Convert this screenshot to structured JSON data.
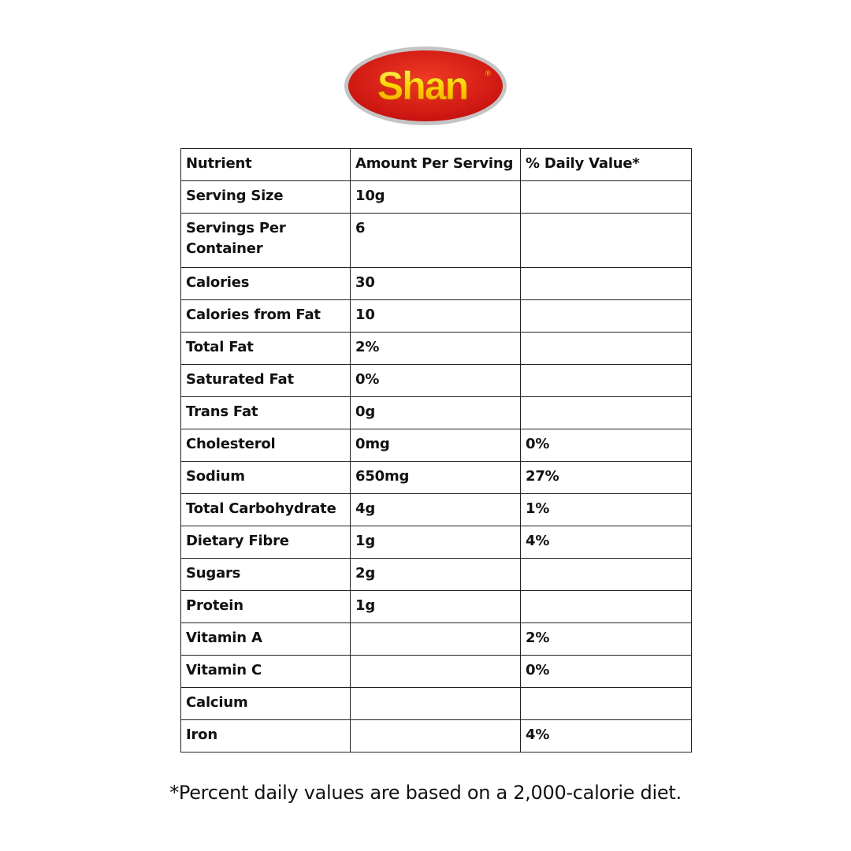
{
  "logo": {
    "text": "Shan",
    "colors": {
      "red": "#e0201b",
      "yellow": "#ffd400",
      "rim": "#b9b9b9"
    }
  },
  "table": {
    "headers": [
      "Nutrient",
      "Amount Per Serving",
      "% Daily Value*"
    ],
    "rows": [
      [
        "Serving Size",
        "10g",
        ""
      ],
      [
        "Servings Per Container",
        "6",
        ""
      ],
      [
        "Calories",
        "30",
        ""
      ],
      [
        "Calories from Fat",
        "10",
        ""
      ],
      [
        "Total Fat",
        "2%",
        ""
      ],
      [
        "Saturated Fat",
        "0%",
        ""
      ],
      [
        "Trans Fat",
        "0g",
        ""
      ],
      [
        "Cholesterol",
        "0mg",
        "0%"
      ],
      [
        "Sodium",
        "650mg",
        "27%"
      ],
      [
        "Total Carbohydrate",
        "4g",
        "1%"
      ],
      [
        "Dietary Fibre",
        "1g",
        "4%"
      ],
      [
        "Sugars",
        "2g",
        ""
      ],
      [
        "Protein",
        "1g",
        ""
      ],
      [
        "Vitamin A",
        "",
        "2%"
      ],
      [
        "Vitamin C",
        "",
        "0%"
      ],
      [
        "Calcium",
        "",
        ""
      ],
      [
        "Iron",
        "",
        "4%"
      ]
    ]
  },
  "footnote": "*Percent daily values are based on a 2,000-calorie diet."
}
